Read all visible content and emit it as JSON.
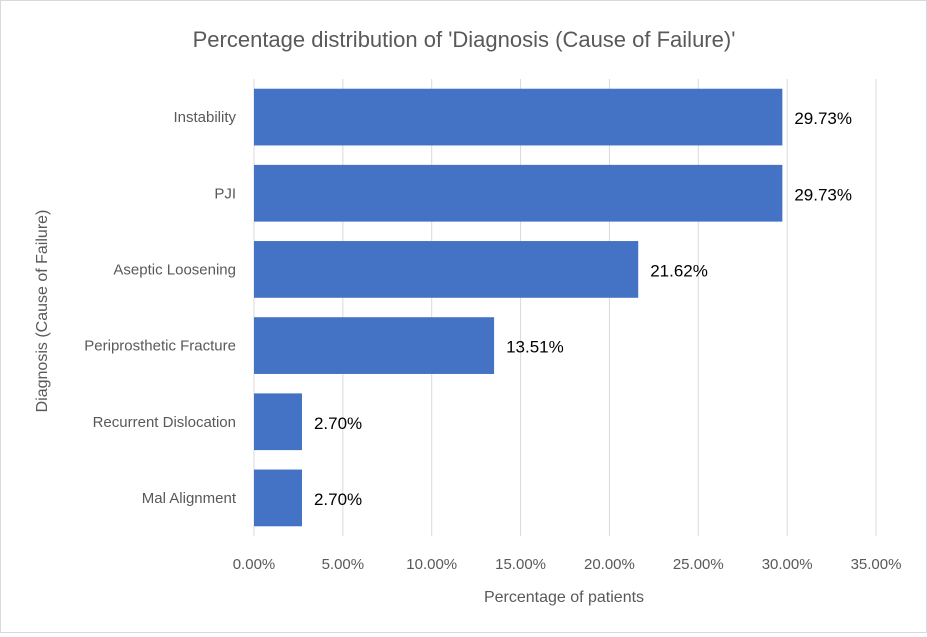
{
  "chart_data": {
    "type": "bar",
    "orientation": "horizontal",
    "title": "Percentage distribution of 'Diagnosis (Cause of Failure)'",
    "xlabel": "Percentage of patients",
    "ylabel": "Diagnosis (Cause of Failure)",
    "categories": [
      "Instability",
      "PJI",
      "Aseptic Loosening",
      "Periprosthetic Fracture",
      "Recurrent Dislocation",
      "Mal Alignment"
    ],
    "values": [
      29.73,
      29.73,
      21.62,
      13.51,
      2.7,
      2.7
    ],
    "data_labels": [
      "29.73%",
      "29.73%",
      "21.62%",
      "13.51%",
      "2.70%",
      "2.70%"
    ],
    "xlim": [
      0,
      35
    ],
    "xticks": [
      0,
      5,
      10,
      15,
      20,
      25,
      30,
      35
    ],
    "xtick_labels": [
      "0.00%",
      "5.00%",
      "10.00%",
      "15.00%",
      "20.00%",
      "25.00%",
      "30.00%",
      "35.00%"
    ],
    "grid": "vertical",
    "legend": "none",
    "colors": {
      "bar": "#4472C4",
      "grid": "#d9d9d9",
      "text": "#595959",
      "label": "#000000"
    }
  }
}
